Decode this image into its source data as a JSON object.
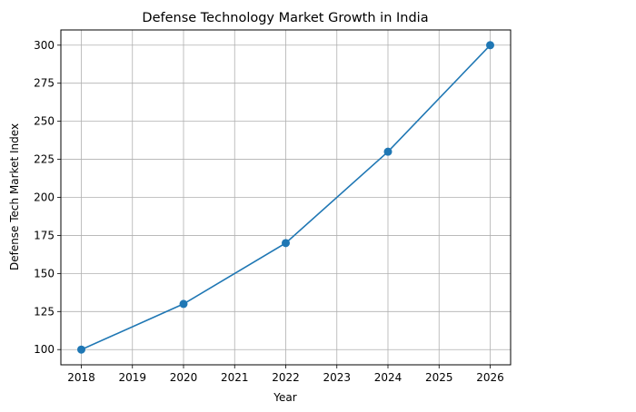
{
  "chart_data": {
    "type": "line",
    "title": "Defense Technology Market Growth in India",
    "xlabel": "Year",
    "ylabel": "Defense Tech Market Index",
    "x": [
      2018,
      2020,
      2022,
      2024,
      2026
    ],
    "series": [
      {
        "values": [
          100,
          130,
          170,
          230,
          300
        ],
        "color": "#1f77b4",
        "marker": "circle"
      }
    ],
    "xlim": [
      2017.6,
      2026.4
    ],
    "ylim": [
      90,
      310
    ],
    "xticks": [
      2018,
      2019,
      2020,
      2021,
      2022,
      2023,
      2024,
      2025,
      2026
    ],
    "yticks": [
      100,
      125,
      150,
      175,
      200,
      225,
      250,
      275,
      300
    ],
    "grid": true
  }
}
